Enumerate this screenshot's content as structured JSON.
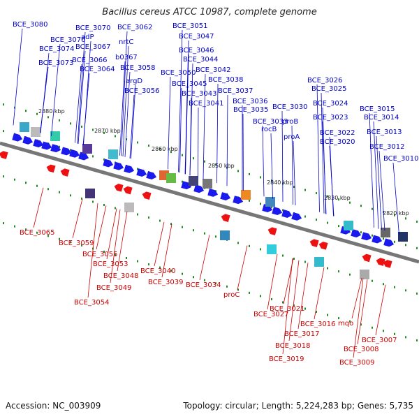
{
  "title": "Bacillus cereus ATCC 10987, complete genome",
  "footer": {
    "accession": "Accession: NC_003909",
    "topology": "Topology: circular; Length: 5,224,283 bp; Genes: 5,735"
  },
  "colors": {
    "forward_label": "#0000cc",
    "reverse_label": "#cc0000",
    "forward_gene": "#1a1aee",
    "reverse_gene": "#ee1111",
    "axis": "#777777",
    "tick": "#228822"
  },
  "kbp_ticks": [
    "2880 kbp",
    "2870 kbp",
    "2860 kbp",
    "2850 kbp",
    "2840 kbp",
    "2830 kbp",
    "2820 kbp"
  ],
  "forward_labels": [
    "BCE_3080",
    "BCE_3076",
    "BCE_3074",
    "BCE_3073",
    "BCE_3070",
    "adP",
    "BCE_3067",
    "BCE_3066",
    "BCE_3064",
    "BCE_3062",
    "nrtC",
    "b0367",
    "BCE_3058",
    "argD",
    "BCE_3056",
    "BCE_3051",
    "BCE_3047",
    "BCE_3046",
    "BCE_3044",
    "BCE_3050",
    "BCE_3042",
    "BCE_3045",
    "BCE_3043",
    "BCE_3038",
    "BCE_3037",
    "BCE_3041",
    "BCE_3036",
    "BCE_3035",
    "BCE_3030",
    "proB",
    "BCE_3033",
    "rocB",
    "proA",
    "BCE_3026",
    "BCE_3025",
    "BCE_3024",
    "BCE_3023",
    "BCE_3022",
    "BCE_3020",
    "BCE_3015",
    "BCE_3014",
    "BCE_3013",
    "BCE_3012",
    "BCE_3010"
  ],
  "reverse_labels": [
    "BCE_3065",
    "BCE_3059",
    "BCE_3055",
    "BCE_3053",
    "BCE_3048",
    "BCE_3049",
    "BCE_3054",
    "BCE_3040",
    "BCE_3039",
    "BCE_3034",
    "proC",
    "BCE_3027",
    "BCE_3021",
    "BCE_3017",
    "BCE_3018",
    "BCE_3019",
    "BCE_3016",
    "mqo",
    "BCE_3007",
    "BCE_3008",
    "BCE_3009"
  ]
}
